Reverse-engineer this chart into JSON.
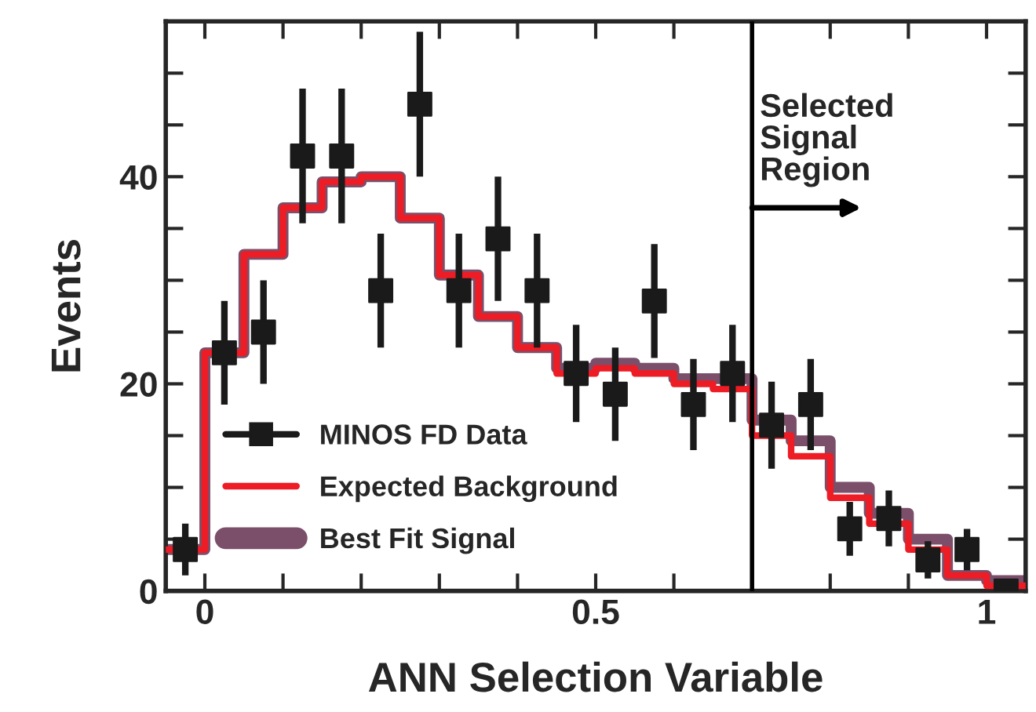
{
  "chart_data": {
    "type": "scatter",
    "xlabel": "ANN Selection Variable",
    "ylabel": "Events",
    "xlim": [
      -0.05,
      1.05
    ],
    "ylim": [
      0,
      55
    ],
    "xticks": [
      0,
      0.5,
      1,
      {
        "value": 0.1,
        "label": null
      },
      {
        "value": 0.2,
        "label": null
      },
      {
        "value": 0.3,
        "label": null
      },
      {
        "value": 0.4,
        "label": null
      },
      {
        "value": 0.6,
        "label": null
      },
      {
        "value": 0.7,
        "label": null
      },
      {
        "value": 0.8,
        "label": null
      },
      {
        "value": 0.9,
        "label": null
      }
    ],
    "yticks": [
      0,
      20,
      40,
      {
        "value": 5,
        "label": null
      },
      {
        "value": 10,
        "label": null
      },
      {
        "value": 15,
        "label": null
      },
      {
        "value": 25,
        "label": null
      },
      {
        "value": 30,
        "label": null
      },
      {
        "value": 35,
        "label": null
      },
      {
        "value": 45,
        "label": null
      },
      {
        "value": 50,
        "label": null
      }
    ],
    "legend": "bottom left",
    "grid": false,
    "ref_lines": [
      {
        "axis": "x",
        "value": 0.7,
        "label": "Selected\nSignal\nRegion",
        "color": "#000000"
      }
    ],
    "series": [
      {
        "name": "Best Fit Signal",
        "type": "step",
        "color": "#7b4f6a",
        "x": [
          -0.05,
          0,
          0.05,
          0.1,
          0.15,
          0.2,
          0.25,
          0.3,
          0.35,
          0.4,
          0.45,
          0.5,
          0.55,
          0.6,
          0.65,
          0.7,
          0.75,
          0.8,
          0.85,
          0.9,
          0.95,
          1.0,
          1.05
        ],
        "values": [
          4,
          23,
          32.5,
          37,
          39.5,
          40,
          36,
          30.5,
          26.5,
          23.5,
          21.5,
          22,
          21.5,
          20.5,
          20.5,
          16.5,
          14.5,
          10,
          7.5,
          5,
          1.5,
          1,
          1
        ]
      },
      {
        "name": "Expected Background",
        "type": "step",
        "color": "#ee1c25",
        "x": [
          -0.05,
          0,
          0.05,
          0.1,
          0.15,
          0.2,
          0.25,
          0.3,
          0.35,
          0.4,
          0.45,
          0.5,
          0.55,
          0.6,
          0.65,
          0.7,
          0.75,
          0.8,
          0.85,
          0.9,
          0.95,
          1.0,
          1.05
        ],
        "values": [
          4,
          23,
          32.5,
          37,
          39.5,
          40,
          36,
          30.5,
          26.5,
          23.5,
          21,
          21.5,
          21,
          20,
          19.5,
          15,
          13,
          9,
          6.5,
          4,
          1.5,
          0.5,
          0.5
        ]
      },
      {
        "name": "MINOS FD Data",
        "color": "#1a1a1a",
        "marker": "square",
        "x": [
          -0.025,
          0.025,
          0.075,
          0.125,
          0.175,
          0.225,
          0.275,
          0.325,
          0.375,
          0.425,
          0.475,
          0.525,
          0.575,
          0.625,
          0.675,
          0.725,
          0.775,
          0.825,
          0.875,
          0.925,
          0.975,
          1.025
        ],
        "values": [
          4,
          23,
          25,
          42,
          42,
          29,
          47,
          29,
          34,
          29,
          21,
          19,
          28,
          18,
          21,
          16,
          18,
          6,
          7,
          3,
          4,
          0
        ],
        "errors": [
          2.5,
          5,
          5,
          6.5,
          6.5,
          5.5,
          7,
          5.5,
          6,
          5.5,
          4.7,
          4.5,
          5.5,
          4.4,
          4.7,
          4.2,
          4.4,
          2.6,
          2.7,
          1.8,
          2,
          null
        ]
      }
    ]
  }
}
